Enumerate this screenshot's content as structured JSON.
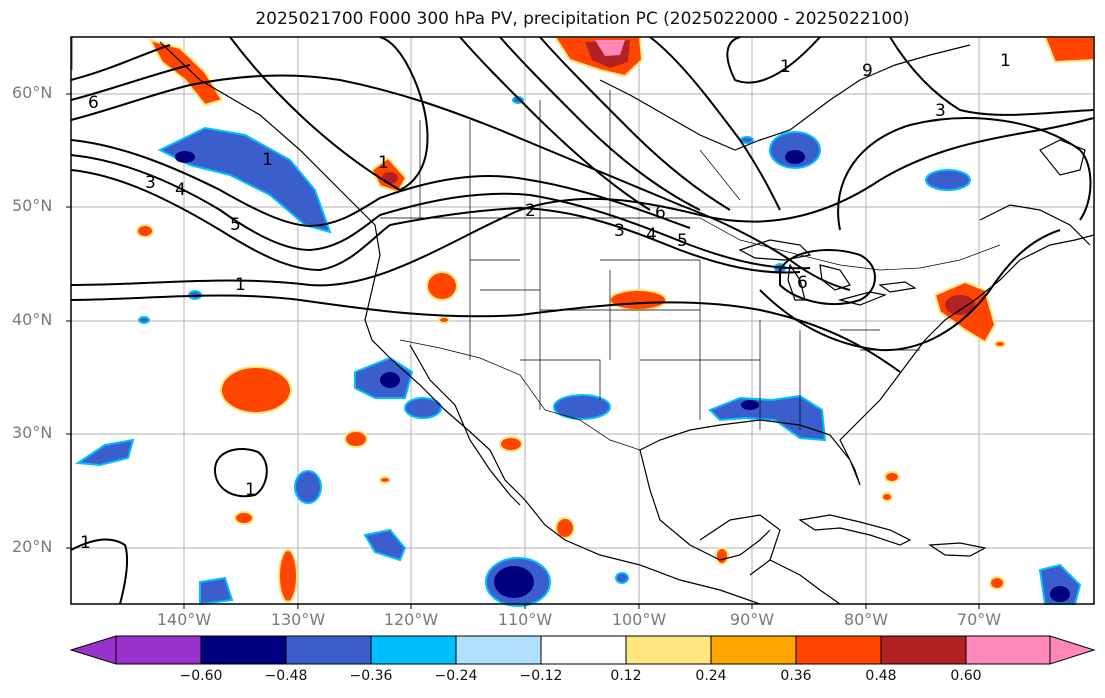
{
  "title": "2025021700 F000 300 hPa PV, precipitation PC (2025022000 - 2025022100)",
  "lat_labels": [
    "60°N",
    "50°N",
    "40°N",
    "30°N",
    "20°N"
  ],
  "lon_labels": [
    "140°W",
    "130°W",
    "120°W",
    "110°W",
    "100°W",
    "90°W",
    "80°W",
    "70°W"
  ],
  "colorbar": {
    "labels": [
      "−0.60",
      "−0.48",
      "−0.36",
      "−0.24",
      "−0.12",
      "0.12",
      "0.24",
      "0.36",
      "0.48",
      "0.60"
    ],
    "colors": [
      "#9932cc",
      "#000080",
      "#3a5fcd",
      "#00bfff",
      "#b0e0ff",
      "#ffffff",
      "#ffe680",
      "#ffa500",
      "#ff4500",
      "#b22222",
      "#ff88b8"
    ]
  },
  "contour_labels": [
    "6",
    "3",
    "4",
    "5",
    "1",
    "1",
    "1",
    "2",
    "3",
    "4",
    "5",
    "6",
    "6",
    "3",
    "1",
    "9",
    "1",
    "1",
    "1"
  ],
  "colors": {
    "negative": "#3a5fcd",
    "negative_dark": "#000080",
    "positive": "#ff4500",
    "positive_dark": "#b22222",
    "outline_pos": "#ffe680",
    "outline_neg": "#00bfff"
  }
}
